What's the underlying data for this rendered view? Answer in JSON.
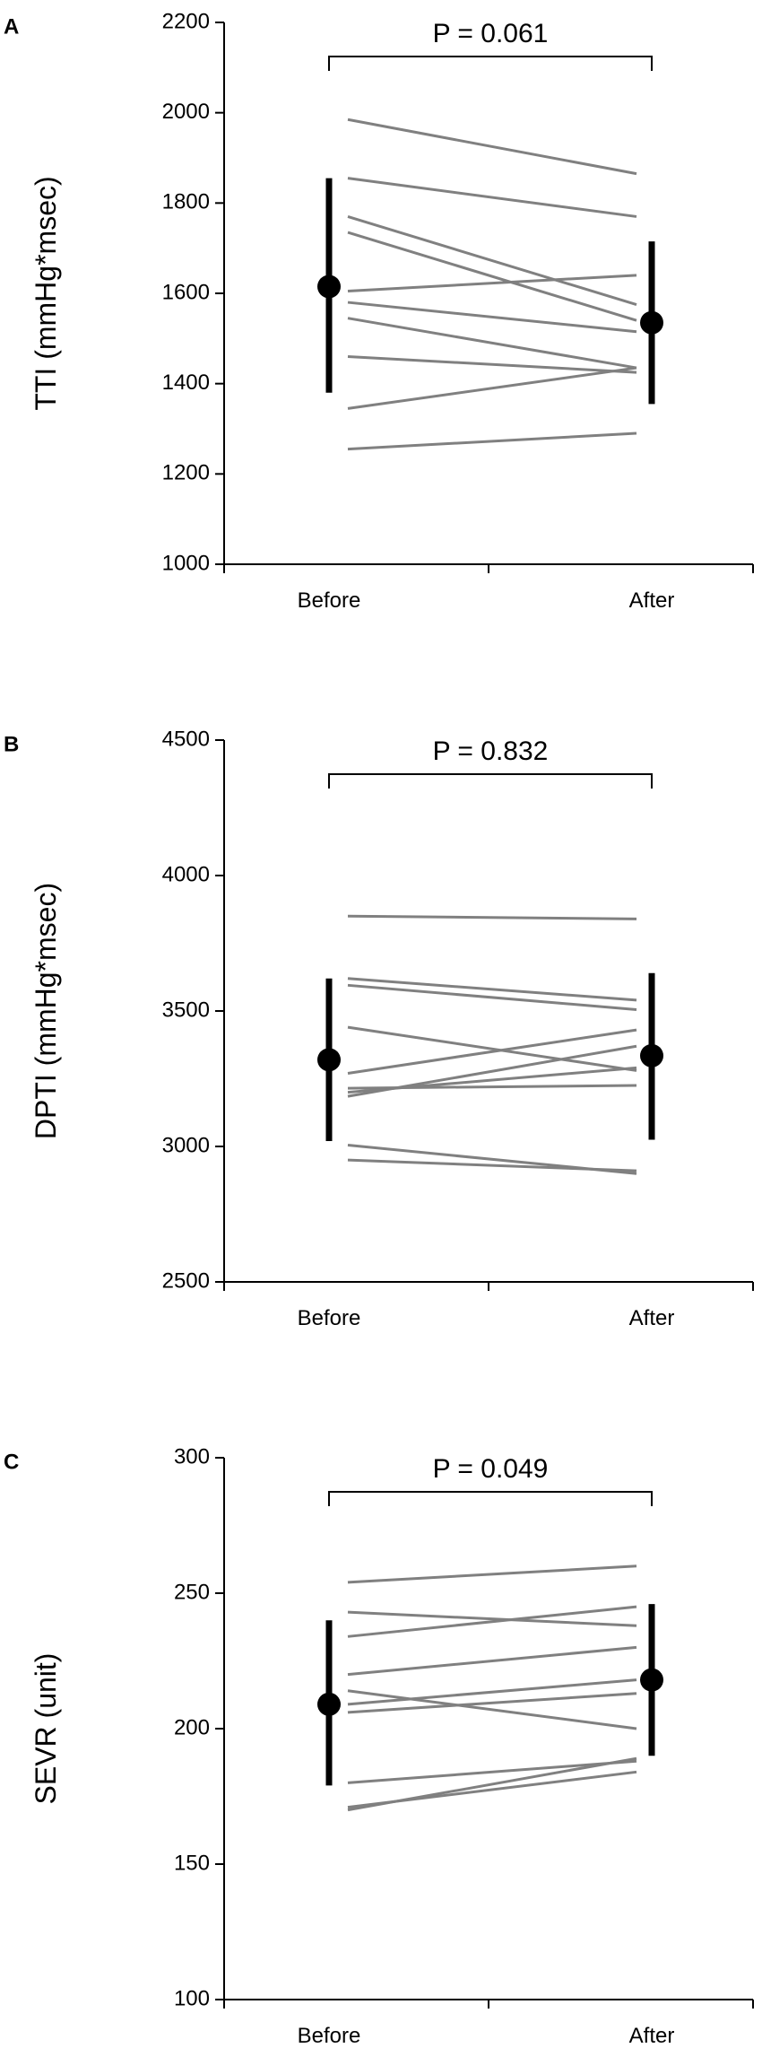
{
  "chart_data": [
    {
      "type": "line",
      "panel_label": "A",
      "ylabel": "TTI (mmHg*msec)",
      "ylim": [
        1000,
        2200
      ],
      "yticks": [
        1000,
        1200,
        1400,
        1600,
        1800,
        2000,
        2200
      ],
      "categories": [
        "Before",
        "After"
      ],
      "p_value": "P = 0.061",
      "individuals": [
        {
          "before": 1985,
          "after": 1865
        },
        {
          "before": 1855,
          "after": 1770
        },
        {
          "before": 1770,
          "after": 1575
        },
        {
          "before": 1735,
          "after": 1540
        },
        {
          "before": 1605,
          "after": 1640
        },
        {
          "before": 1580,
          "after": 1515
        },
        {
          "before": 1545,
          "after": 1435
        },
        {
          "before": 1460,
          "after": 1425
        },
        {
          "before": 1345,
          "after": 1435
        },
        {
          "before": 1255,
          "after": 1290
        }
      ],
      "summary": {
        "before": {
          "mean": 1615,
          "lower": 1380,
          "upper": 1855
        },
        "after": {
          "mean": 1535,
          "lower": 1355,
          "upper": 1715
        }
      }
    },
    {
      "type": "line",
      "panel_label": "B",
      "ylabel": "DPTI (mmHg*msec)",
      "ylim": [
        2500,
        4500
      ],
      "yticks": [
        2500,
        3000,
        3500,
        4000,
        4500
      ],
      "categories": [
        "Before",
        "After"
      ],
      "p_value": "P = 0.832",
      "individuals": [
        {
          "before": 3850,
          "after": 3840
        },
        {
          "before": 3620,
          "after": 3540
        },
        {
          "before": 3595,
          "after": 3505
        },
        {
          "before": 3440,
          "after": 3280
        },
        {
          "before": 3270,
          "after": 3430
        },
        {
          "before": 3215,
          "after": 3225
        },
        {
          "before": 3200,
          "after": 3290
        },
        {
          "before": 3185,
          "after": 3370
        },
        {
          "before": 3005,
          "after": 2900
        },
        {
          "before": 2950,
          "after": 2910
        }
      ],
      "summary": {
        "before": {
          "mean": 3320,
          "lower": 3020,
          "upper": 3620
        },
        "after": {
          "mean": 3335,
          "lower": 3025,
          "upper": 3640
        }
      }
    },
    {
      "type": "line",
      "panel_label": "C",
      "ylabel": "SEVR (unit)",
      "ylim": [
        100,
        300
      ],
      "yticks": [
        100,
        150,
        200,
        250,
        300
      ],
      "categories": [
        "Before",
        "After"
      ],
      "p_value": "P = 0.049",
      "individuals": [
        {
          "before": 254,
          "after": 260
        },
        {
          "before": 243,
          "after": 238
        },
        {
          "before": 234,
          "after": 245
        },
        {
          "before": 220,
          "after": 230
        },
        {
          "before": 214,
          "after": 200
        },
        {
          "before": 209,
          "after": 218
        },
        {
          "before": 206,
          "after": 213
        },
        {
          "before": 180,
          "after": 188
        },
        {
          "before": 171,
          "after": 184
        },
        {
          "before": 170,
          "after": 189
        }
      ],
      "summary": {
        "before": {
          "mean": 209,
          "lower": 179,
          "upper": 240
        },
        "after": {
          "mean": 218,
          "lower": 190,
          "upper": 246
        }
      }
    }
  ]
}
